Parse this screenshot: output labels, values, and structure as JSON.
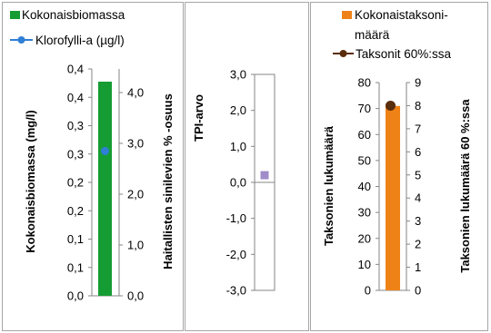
{
  "chart_data": [
    {
      "type": "bar",
      "categories": [
        ""
      ],
      "series": [
        {
          "name": "Kokonaisbiomassa",
          "axis": "left",
          "values": [
            0.43
          ],
          "color": "#159c33"
        },
        {
          "name": "Klorofylli-a (µg/l)",
          "axis": "right",
          "type": "line",
          "values": [
            2.85
          ],
          "color": "#2f7fd6"
        }
      ],
      "ylabel": "Kokonaisbiomassa (mg/l)",
      "ylabel_right": "Haitallisten sinilevien % -osuus",
      "ylim": [
        0,
        0.4
      ],
      "ylim_right": [
        0,
        4.0
      ],
      "yticks": [
        "0,0",
        "0,1",
        "0,1",
        "0,2",
        "0,2",
        "0,3",
        "0,3",
        "0,4",
        "0,4"
      ],
      "yticks_right": [
        "0,0",
        "1,0",
        "2,0",
        "3,0",
        "4,0"
      ],
      "legend": "top"
    },
    {
      "type": "scatter",
      "series": [
        {
          "name": "TPI",
          "values": [
            0.2
          ],
          "color": "#a08cc8"
        }
      ],
      "ylabel": "TPI-arvo",
      "ylim": [
        -3.0,
        3.0
      ],
      "yticks": [
        "-3,0",
        "-2,0",
        "-1,0",
        "0,0",
        "1,0",
        "2,0",
        "3,0"
      ]
    },
    {
      "type": "bar",
      "categories": [
        ""
      ],
      "series": [
        {
          "name": "Kokonaistaksonimäärä",
          "axis": "left",
          "values": [
            71
          ],
          "color": "#ef8217"
        },
        {
          "name": "Taksonit 60%:ssa",
          "axis": "right",
          "type": "line",
          "values": [
            8
          ],
          "color": "#5a2d0c"
        }
      ],
      "ylabel": "Taksonien lukumäärä",
      "ylabel_right": "Taksonien lukumäärä 60 %:ssa",
      "ylim": [
        0,
        80
      ],
      "ylim_right": [
        0,
        9
      ],
      "yticks": [
        "0",
        "10",
        "20",
        "30",
        "40",
        "50",
        "60",
        "70",
        "80"
      ],
      "yticks_right": [
        "0",
        "1",
        "2",
        "3",
        "4",
        "5",
        "6",
        "7",
        "8",
        "9"
      ],
      "legend": "top",
      "legend_lines": [
        "Kokonaistaksoni-",
        "määrä"
      ]
    }
  ]
}
